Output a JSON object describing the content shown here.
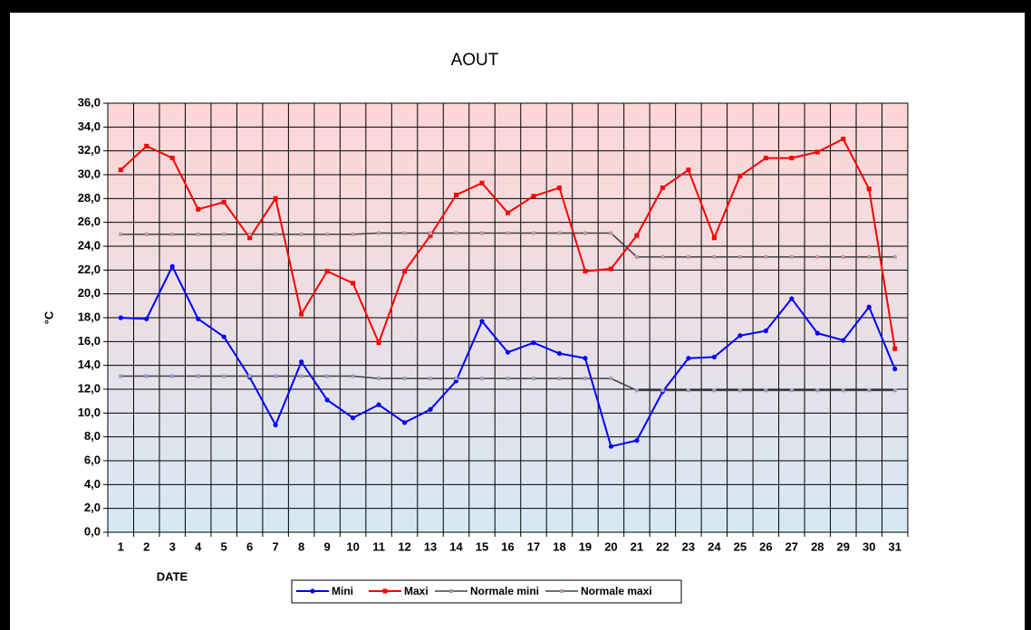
{
  "chart_data": {
    "type": "line",
    "title": "AOUT",
    "x_label": "DATE",
    "y_label": "°C",
    "categories": [
      "1",
      "2",
      "3",
      "4",
      "5",
      "6",
      "7",
      "8",
      "9",
      "10",
      "11",
      "12",
      "13",
      "14",
      "15",
      "16",
      "17",
      "18",
      "19",
      "20",
      "21",
      "22",
      "23",
      "24",
      "25",
      "26",
      "27",
      "28",
      "29",
      "30",
      "31"
    ],
    "series": [
      {
        "name": "Mini",
        "color": "#0000ff",
        "values": [
          18.0,
          17.9,
          22.3,
          17.9,
          16.4,
          13.0,
          9.0,
          14.3,
          11.1,
          9.6,
          10.7,
          9.2,
          10.3,
          12.7,
          17.7,
          15.1,
          15.9,
          15.0,
          14.6,
          7.2,
          7.7,
          11.8,
          14.6,
          14.7,
          16.5,
          16.9,
          19.6,
          16.7,
          16.1,
          18.9,
          13.7
        ]
      },
      {
        "name": "Maxi",
        "color": "#ff0000",
        "values": [
          30.4,
          32.4,
          31.4,
          27.1,
          27.7,
          24.7,
          28.0,
          18.3,
          21.9,
          20.9,
          15.9,
          21.9,
          24.9,
          28.3,
          29.3,
          26.8,
          28.2,
          28.9,
          21.9,
          22.1,
          24.9,
          28.9,
          30.4,
          24.7,
          29.9,
          31.4,
          31.4,
          31.9,
          33.0,
          28.8,
          15.4
        ]
      },
      {
        "name": "Normale mini",
        "color": "#404040",
        "marker_color": "#9c9cc0",
        "values": [
          13.1,
          13.1,
          13.1,
          13.1,
          13.1,
          13.1,
          13.1,
          13.1,
          13.1,
          13.1,
          12.9,
          12.9,
          12.9,
          12.9,
          12.9,
          12.9,
          12.9,
          12.9,
          12.9,
          12.9,
          11.9,
          11.9,
          11.9,
          11.9,
          11.9,
          11.9,
          11.9,
          11.9,
          11.9,
          11.9,
          11.9
        ]
      },
      {
        "name": "Normale maxi",
        "color": "#404040",
        "marker_color": "#c09898",
        "values": [
          25.0,
          25.0,
          25.0,
          25.0,
          25.0,
          25.0,
          25.0,
          25.0,
          25.0,
          25.0,
          25.1,
          25.1,
          25.1,
          25.1,
          25.1,
          25.1,
          25.1,
          25.1,
          25.1,
          25.1,
          23.1,
          23.1,
          23.1,
          23.1,
          23.1,
          23.1,
          23.1,
          23.1,
          23.1,
          23.1,
          23.1
        ]
      }
    ],
    "ylim": [
      0,
      36
    ],
    "yticks": [
      {
        "value": 0,
        "label": "0,0"
      },
      {
        "value": 2,
        "label": "2,0"
      },
      {
        "value": 4,
        "label": "4,0"
      },
      {
        "value": 6,
        "label": "6,0"
      },
      {
        "value": 8,
        "label": "8,0"
      },
      {
        "value": 10,
        "label": "10,0"
      },
      {
        "value": 12,
        "label": "12,0"
      },
      {
        "value": 14,
        "label": "14,0"
      },
      {
        "value": 16,
        "label": "16,0"
      },
      {
        "value": 18,
        "label": "18,0"
      },
      {
        "value": 20,
        "label": "20,0"
      },
      {
        "value": 22,
        "label": "22,0"
      },
      {
        "value": 24,
        "label": "24,0"
      },
      {
        "value": 26,
        "label": "26,0"
      },
      {
        "value": 28,
        "label": "28,0"
      },
      {
        "value": 30,
        "label": "30,0"
      },
      {
        "value": 32,
        "label": "32,0"
      },
      {
        "value": 34,
        "label": "34,0"
      },
      {
        "value": 36,
        "label": "36,0"
      }
    ],
    "grid": true,
    "legend": "bottom"
  }
}
